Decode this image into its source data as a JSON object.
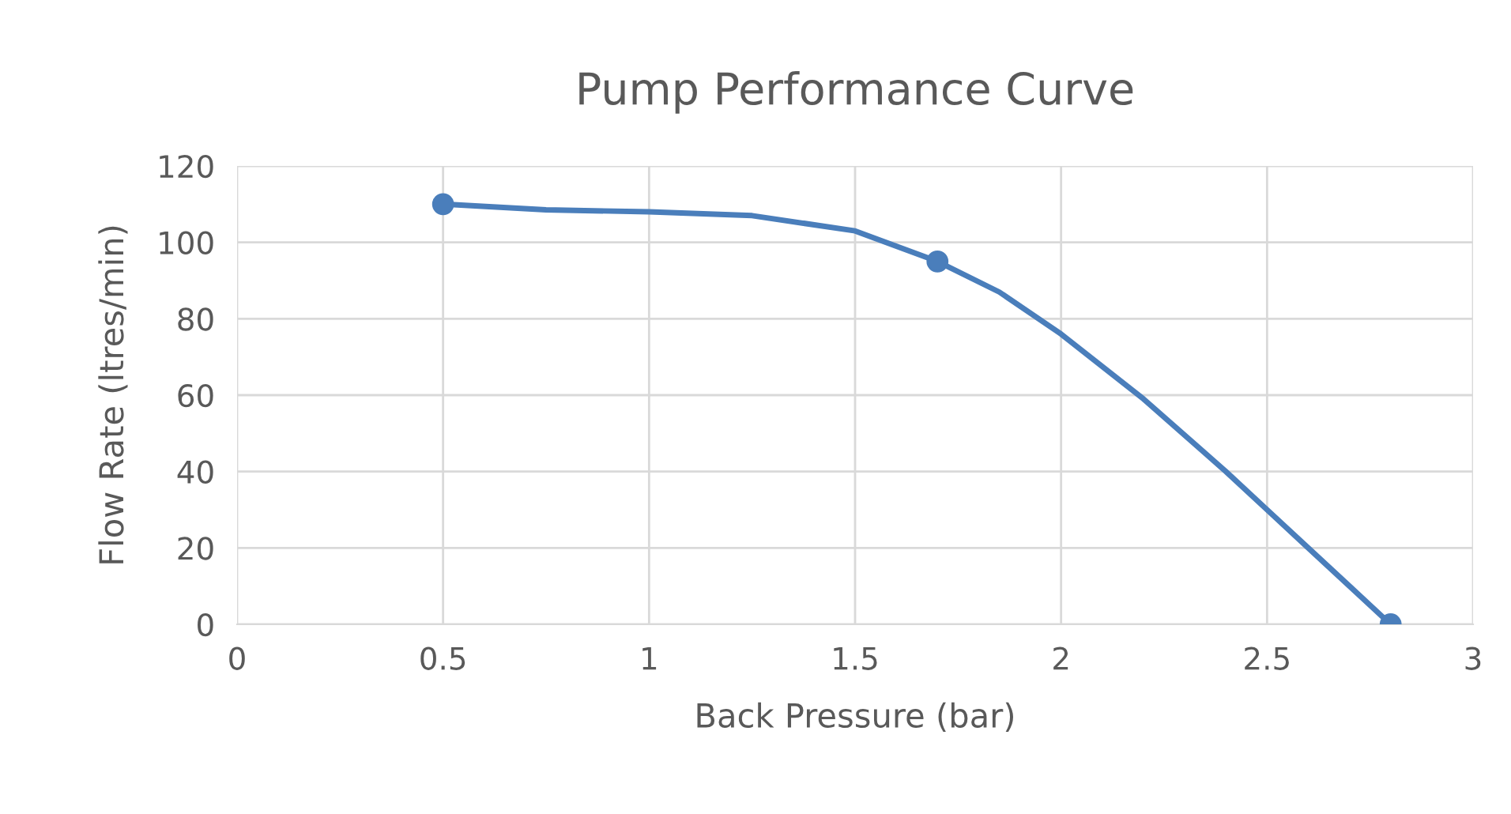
{
  "chart_data": {
    "type": "line",
    "title": "Pump Performance Curve",
    "xlabel": "Back Pressure (bar)",
    "ylabel": "Flow Rate (ltres/min)",
    "series": [
      {
        "x": [
          0.5,
          0.75,
          1.0,
          1.25,
          1.5,
          1.7,
          1.85,
          2.0,
          2.2,
          2.4,
          2.5,
          2.6,
          2.7,
          2.8
        ],
        "values": [
          110,
          108.5,
          108,
          107,
          103,
          95,
          87,
          76,
          59,
          40,
          30,
          20,
          10,
          0
        ],
        "color": "#4a7ebb",
        "marker": "none"
      },
      {
        "type": "scatter",
        "x": [
          0.5,
          1.7,
          2.8
        ],
        "values": [
          110,
          95,
          0
        ],
        "color": "#4a7ebb",
        "marker": "circle"
      }
    ],
    "xlim": [
      0,
      3
    ],
    "xticks": [
      0,
      0.5,
      1,
      1.5,
      2,
      2.5,
      3
    ],
    "ylim": [
      0,
      120
    ],
    "yticks": [
      0,
      20,
      40,
      60,
      80,
      100,
      120
    ],
    "grid": true,
    "line_style": "solid",
    "legend": false
  }
}
